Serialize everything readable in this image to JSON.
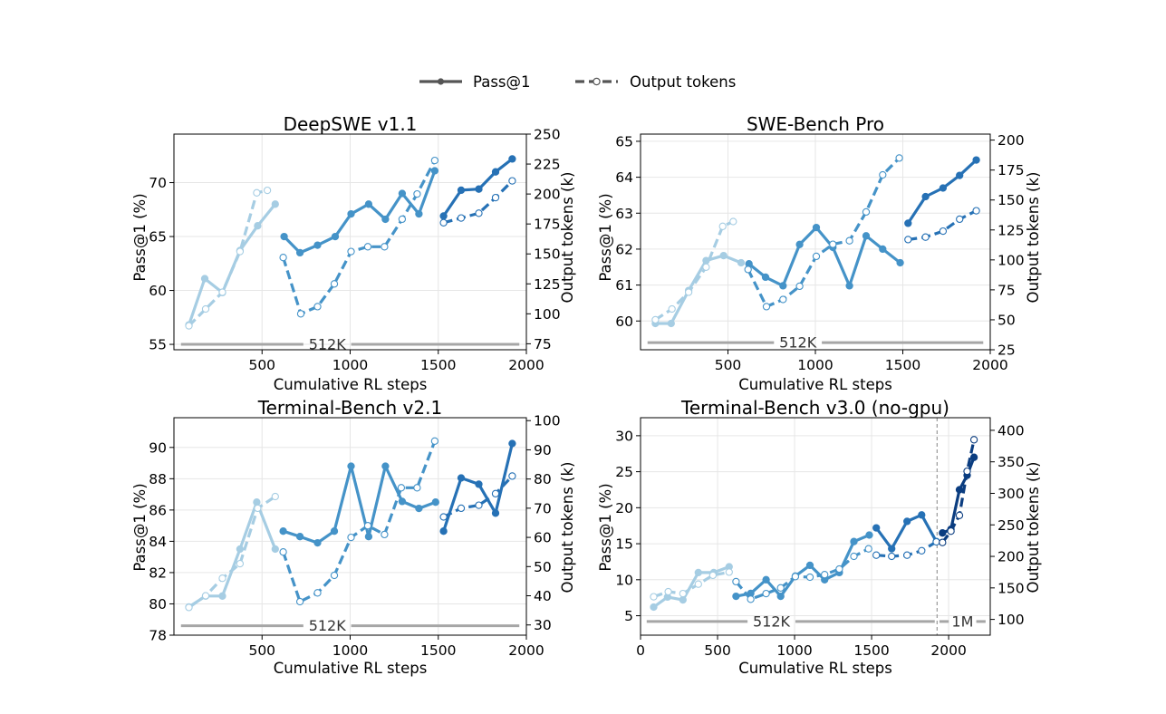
{
  "legend": {
    "pass_label": "Pass@1",
    "tokens_label": "Output tokens",
    "color": "#555555"
  },
  "palette": {
    "stage1": "#a6cde3",
    "stage2": "#4593c8",
    "stage3": "#2671b5",
    "stage4": "#0b3d80",
    "context_line": "#a6a6a6",
    "divider": "#999999"
  },
  "chart_data": [
    {
      "type": "line",
      "title": "DeepSWE v1.1",
      "xlabel": "Cumulative RL steps",
      "ylabel": "Pass@1 (%)",
      "y2label": "Output tokens (k)",
      "xlim": [
        0,
        2000
      ],
      "ylim": [
        54.5,
        74.5
      ],
      "y2lim": [
        70,
        250
      ],
      "xticks": [
        500,
        1000,
        1500,
        2000
      ],
      "yticks": [
        55,
        60,
        65,
        70
      ],
      "y2ticks": [
        75,
        100,
        125,
        150,
        175,
        200,
        225,
        250
      ],
      "grid": true,
      "context_labels": [
        {
          "label": "512K",
          "x_start": 40,
          "x_end": 1960,
          "label_x": 870,
          "y": 55
        }
      ],
      "series": [
        {
          "metric": "pass",
          "stage": 1,
          "x": [
            85,
            175,
            275,
            375,
            475,
            575
          ],
          "y": [
            56.8,
            61.1,
            59.8,
            63.7,
            66.0,
            68.0
          ]
        },
        {
          "metric": "tokens",
          "stage": 1,
          "x": [
            85,
            180,
            275,
            375,
            470,
            530
          ],
          "y": [
            90,
            104,
            118,
            152,
            201,
            203
          ]
        },
        {
          "metric": "pass",
          "stage": 2,
          "x": [
            625,
            715,
            815,
            915,
            1005,
            1105,
            1200,
            1295,
            1390,
            1480
          ],
          "y": [
            65.0,
            63.5,
            64.2,
            65.0,
            67.1,
            68.0,
            66.6,
            69.0,
            67.1,
            71.1
          ]
        },
        {
          "metric": "tokens",
          "stage": 2,
          "x": [
            620,
            720,
            815,
            910,
            1005,
            1100,
            1195,
            1295,
            1380,
            1480
          ],
          "y": [
            147,
            100,
            106,
            125,
            152,
            156,
            156,
            179,
            200,
            228
          ]
        },
        {
          "metric": "pass",
          "stage": 3,
          "x": [
            1530,
            1630,
            1730,
            1825,
            1920
          ],
          "y": [
            66.9,
            69.3,
            69.4,
            71.0,
            72.2
          ]
        },
        {
          "metric": "tokens",
          "stage": 3,
          "x": [
            1530,
            1630,
            1730,
            1825,
            1920
          ],
          "y": [
            176,
            180,
            184,
            197,
            211
          ]
        }
      ]
    },
    {
      "type": "line",
      "title": "SWE-Bench Pro",
      "xlabel": "Cumulative RL steps",
      "ylabel": "Pass@1 (%)",
      "y2label": "Output tokens (k)",
      "xlim": [
        0,
        2000
      ],
      "ylim": [
        59.2,
        65.2
      ],
      "y2lim": [
        25,
        205
      ],
      "xticks": [
        500,
        1000,
        1500,
        2000
      ],
      "yticks": [
        60,
        61,
        62,
        63,
        64,
        65
      ],
      "y2ticks": [
        25,
        50,
        75,
        100,
        125,
        150,
        175,
        200
      ],
      "grid": true,
      "context_labels": [
        {
          "label": "512K",
          "x_start": 40,
          "x_end": 1960,
          "label_x": 900,
          "y": 59.4
        }
      ],
      "series": [
        {
          "metric": "pass",
          "stage": 1,
          "x": [
            85,
            175,
            275,
            375,
            475,
            575
          ],
          "y": [
            59.93,
            59.93,
            60.85,
            61.68,
            61.82,
            61.62
          ]
        },
        {
          "metric": "tokens",
          "stage": 1,
          "x": [
            85,
            180,
            275,
            375,
            470,
            530
          ],
          "y": [
            50,
            59,
            73,
            94,
            128,
            132
          ]
        },
        {
          "metric": "pass",
          "stage": 2,
          "x": [
            620,
            715,
            815,
            910,
            1005,
            1100,
            1195,
            1290,
            1385,
            1485
          ],
          "y": [
            61.59,
            61.22,
            60.98,
            62.13,
            62.6,
            62.05,
            60.98,
            62.37,
            62.0,
            61.62
          ]
        },
        {
          "metric": "tokens",
          "stage": 2,
          "x": [
            615,
            720,
            815,
            910,
            1005,
            1100,
            1195,
            1290,
            1385,
            1480
          ],
          "y": [
            92,
            61,
            67,
            78,
            103,
            113,
            116,
            140,
            171,
            185
          ]
        },
        {
          "metric": "pass",
          "stage": 3,
          "x": [
            1530,
            1630,
            1730,
            1825,
            1920
          ],
          "y": [
            62.72,
            63.46,
            63.7,
            64.05,
            64.48
          ]
        },
        {
          "metric": "tokens",
          "stage": 3,
          "x": [
            1530,
            1630,
            1730,
            1825,
            1920
          ],
          "y": [
            117,
            119,
            124,
            134,
            141
          ]
        }
      ]
    },
    {
      "type": "line",
      "title": "Terminal-Bench v2.1",
      "xlabel": "Cumulative RL steps",
      "ylabel": "Pass@1 (%)",
      "y2label": "Output tokens (k)",
      "xlim": [
        0,
        2000
      ],
      "ylim": [
        78,
        91.9
      ],
      "y2lim": [
        26.5,
        101
      ],
      "xticks": [
        500,
        1000,
        1500,
        2000
      ],
      "yticks": [
        78,
        80,
        82,
        84,
        86,
        88,
        90
      ],
      "y2ticks": [
        30,
        40,
        50,
        60,
        70,
        80,
        90,
        100
      ],
      "grid": true,
      "context_labels": [
        {
          "label": "512K",
          "x_start": 40,
          "x_end": 1960,
          "label_x": 870,
          "y": 78.6
        }
      ],
      "series": [
        {
          "metric": "pass",
          "stage": 1,
          "x": [
            85,
            180,
            275,
            375,
            470,
            575
          ],
          "y": [
            79.8,
            80.5,
            80.5,
            83.5,
            86.5,
            83.5
          ]
        },
        {
          "metric": "tokens",
          "stage": 1,
          "x": [
            85,
            180,
            275,
            375,
            475,
            575
          ],
          "y": [
            36,
            40,
            46,
            51,
            70,
            74
          ]
        },
        {
          "metric": "pass",
          "stage": 2,
          "x": [
            620,
            715,
            815,
            910,
            1005,
            1105,
            1200,
            1295,
            1390,
            1485
          ],
          "y": [
            84.65,
            84.3,
            83.9,
            84.65,
            88.8,
            84.3,
            88.8,
            86.55,
            86.1,
            86.5
          ]
        },
        {
          "metric": "tokens",
          "stage": 2,
          "x": [
            620,
            715,
            815,
            910,
            1005,
            1100,
            1195,
            1290,
            1380,
            1480
          ],
          "y": [
            55,
            38,
            41,
            47,
            60,
            64,
            61,
            77,
            77,
            93
          ]
        },
        {
          "metric": "pass",
          "stage": 3,
          "x": [
            1530,
            1630,
            1730,
            1825,
            1920
          ],
          "y": [
            84.65,
            88.05,
            87.65,
            85.8,
            90.25
          ]
        },
        {
          "metric": "tokens",
          "stage": 3,
          "x": [
            1530,
            1630,
            1730,
            1825,
            1920
          ],
          "y": [
            67,
            70,
            71,
            75,
            81
          ]
        }
      ]
    },
    {
      "type": "line",
      "title": "Terminal-Bench v3.0 (no-gpu)",
      "xlabel": "Cumulative RL steps",
      "ylabel": "Pass@1 (%)",
      "y2label": "Output tokens (k)",
      "xlim": [
        0,
        2270
      ],
      "ylim": [
        2.3,
        32.5
      ],
      "y2lim": [
        75,
        420
      ],
      "xticks": [
        0,
        500,
        1000,
        1500,
        2000
      ],
      "yticks": [
        5,
        10,
        15,
        20,
        25,
        30
      ],
      "y2ticks": [
        100,
        150,
        200,
        250,
        300,
        350,
        400
      ],
      "grid": true,
      "divider_x": 1925,
      "context_labels": [
        {
          "label": "512K",
          "x_start": 40,
          "x_end": 1910,
          "label_x": 850,
          "y": 4.2
        },
        {
          "label": "1M",
          "x_start": 1940,
          "x_end": 2240,
          "label_x": 2090,
          "y": 4.2
        }
      ],
      "series": [
        {
          "metric": "pass",
          "stage": 1,
          "x": [
            85,
            175,
            275,
            375,
            475,
            575
          ],
          "y": [
            6.2,
            7.6,
            7.2,
            11.0,
            11.0,
            11.8
          ]
        },
        {
          "metric": "tokens",
          "stage": 1,
          "x": [
            85,
            180,
            275,
            375,
            470,
            575
          ],
          "y": [
            136,
            144,
            141,
            156,
            170,
            175
          ]
        },
        {
          "metric": "pass",
          "stage": 2,
          "x": [
            620,
            715,
            815,
            910,
            1005,
            1100,
            1195,
            1290,
            1385,
            1485
          ],
          "y": [
            7.7,
            8.1,
            10.0,
            7.7,
            10.5,
            12.0,
            10.0,
            11.0,
            15.3,
            16.2
          ]
        },
        {
          "metric": "tokens",
          "stage": 2,
          "x": [
            620,
            715,
            815,
            910,
            1005,
            1100,
            1195,
            1290,
            1385,
            1480
          ],
          "y": [
            160,
            132,
            141,
            150,
            168,
            167,
            171,
            180,
            200,
            212
          ]
        },
        {
          "metric": "pass",
          "stage": 3,
          "x": [
            1530,
            1630,
            1730,
            1825,
            1920
          ],
          "y": [
            17.2,
            14.3,
            18.1,
            19.0,
            15.3
          ]
        },
        {
          "metric": "tokens",
          "stage": 3,
          "x": [
            1530,
            1630,
            1730,
            1825,
            1920
          ],
          "y": [
            202,
            200,
            202,
            209,
            223
          ]
        },
        {
          "metric": "pass",
          "stage": 4,
          "x": [
            1960,
            2015,
            2070,
            2120,
            2165
          ],
          "y": [
            16.5,
            17.0,
            22.5,
            24.5,
            27.0
          ]
        },
        {
          "metric": "tokens",
          "stage": 4,
          "x": [
            1960,
            2015,
            2070,
            2120,
            2165
          ],
          "y": [
            222,
            240,
            265,
            335,
            385
          ]
        }
      ]
    }
  ]
}
